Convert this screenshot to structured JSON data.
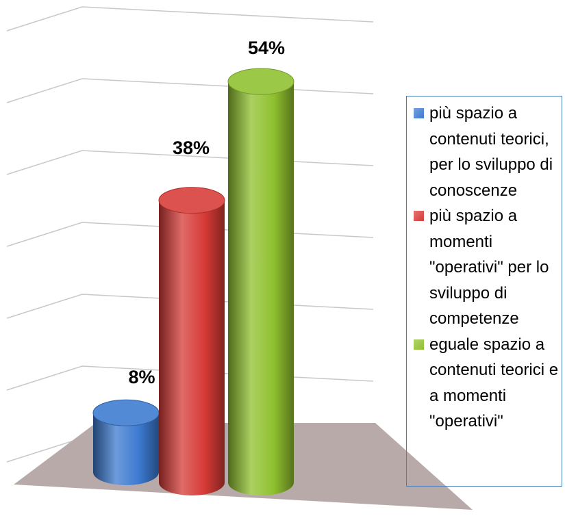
{
  "chart_data": {
    "type": "bar",
    "series": [
      {
        "name": "più spazio a contenuti teorici, per lo sviluppo di conoscenze",
        "color": "#3c7ad0",
        "values": [
          8
        ],
        "value_labels": [
          "8%"
        ]
      },
      {
        "name": "più spazio a momenti \"operativi\" per lo sviluppo di competenze",
        "color": "#d63a36",
        "values": [
          38
        ],
        "value_labels": [
          "38%"
        ]
      },
      {
        "name": "eguale spazio a contenuti teorici e a momenti \"operativi\"",
        "color": "#8fc02e",
        "values": [
          54
        ],
        "value_labels": [
          "54%"
        ]
      }
    ],
    "ylim": [
      0,
      60
    ],
    "yticks": [
      0,
      10,
      20,
      30,
      40,
      50,
      60
    ],
    "grid": true
  }
}
